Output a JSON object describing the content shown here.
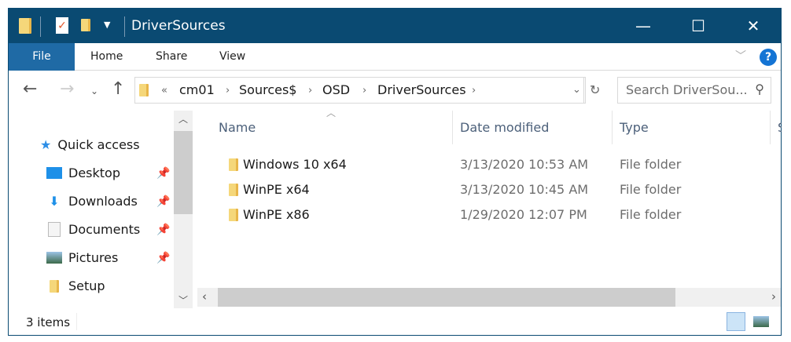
{
  "window": {
    "title": "DriverSources",
    "minimize": "—",
    "maximize": "☐",
    "close": "✕"
  },
  "ribbon": {
    "tabs": [
      "File",
      "Home",
      "Share",
      "View"
    ],
    "help": "?"
  },
  "address": {
    "prefix": "«",
    "crumbs": [
      "cm01",
      "Sources$",
      "OSD",
      "DriverSources"
    ]
  },
  "search": {
    "placeholder": "Search DriverSou..."
  },
  "sidebar": {
    "quick_access": "Quick access",
    "items": [
      {
        "label": "Desktop",
        "pinned": true
      },
      {
        "label": "Downloads",
        "pinned": true
      },
      {
        "label": "Documents",
        "pinned": true
      },
      {
        "label": "Pictures",
        "pinned": true
      },
      {
        "label": "Setup",
        "pinned": false
      }
    ]
  },
  "columns": [
    "Name",
    "Date modified",
    "Type",
    "Size"
  ],
  "files": [
    {
      "name": "Windows 10 x64",
      "date": "3/13/2020 10:53 AM",
      "type": "File folder"
    },
    {
      "name": "WinPE x64",
      "date": "3/13/2020 10:45 AM",
      "type": "File folder"
    },
    {
      "name": "WinPE x86",
      "date": "1/29/2020 12:07 PM",
      "type": "File folder"
    }
  ],
  "status": {
    "count": "3 items"
  },
  "colors": {
    "titlebar": "#0a4a72",
    "file_tab": "#1f6aa5",
    "folder": "#f5d77a"
  }
}
